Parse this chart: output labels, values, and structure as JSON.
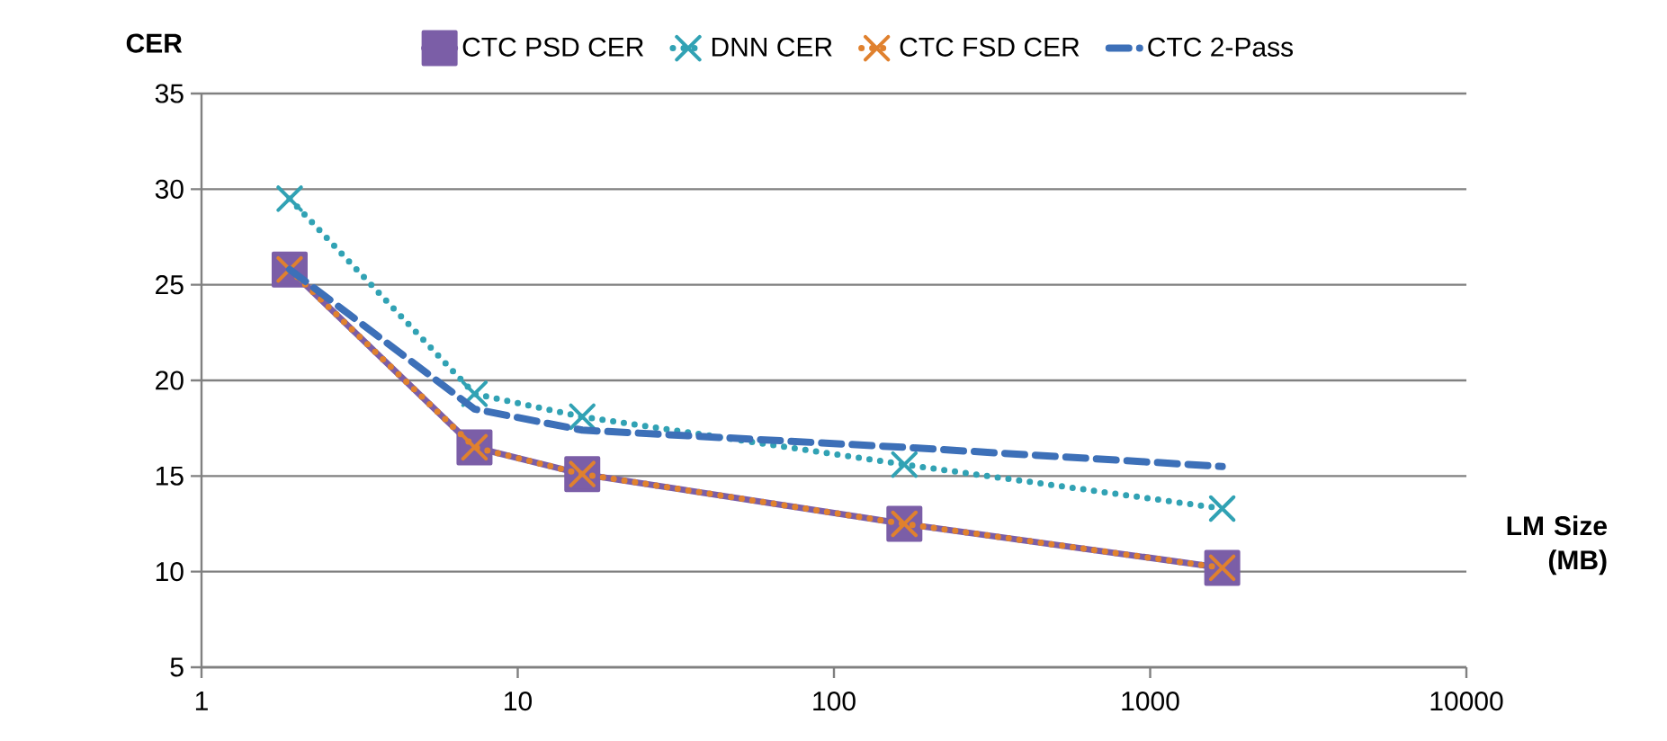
{
  "chart_data": {
    "type": "line",
    "ylabel": "CER",
    "xlabel": "LM Size (MB)",
    "x": [
      1.9,
      7.3,
      16,
      167,
      1690
    ],
    "xlim": [
      1,
      10000
    ],
    "xticks": [
      1,
      10,
      100,
      1000,
      10000
    ],
    "ylim": [
      5,
      35
    ],
    "yticks": [
      5,
      10,
      15,
      20,
      25,
      30,
      35
    ],
    "log": "x",
    "grid": "y",
    "legend": "top",
    "series": [
      {
        "name": "CTC PSD CER",
        "color": "#7b5ea7",
        "marker": "square",
        "line_style": "solid",
        "values": [
          25.8,
          16.5,
          15.1,
          12.5,
          10.2
        ]
      },
      {
        "name": "DNN CER",
        "color": "#31a2b4",
        "marker": "cross",
        "line_style": "dotted",
        "values": [
          29.5,
          19.3,
          18.1,
          15.6,
          13.3
        ]
      },
      {
        "name": "CTC FSD CER",
        "color": "#e0812e",
        "marker": "cross",
        "line_style": "dotted",
        "values": [
          25.8,
          16.5,
          15.1,
          12.5,
          10.2
        ]
      },
      {
        "name": "CTC 2-Pass",
        "color": "#3d70b8",
        "marker": "none",
        "line_style": "dashed",
        "values": [
          25.8,
          18.5,
          17.4,
          16.5,
          15.5
        ]
      }
    ]
  }
}
